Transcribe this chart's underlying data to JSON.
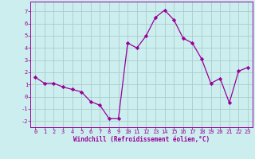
{
  "x": [
    0,
    1,
    2,
    3,
    4,
    5,
    6,
    7,
    8,
    9,
    10,
    11,
    12,
    13,
    14,
    15,
    16,
    17,
    18,
    19,
    20,
    21,
    22,
    23
  ],
  "y": [
    1.6,
    1.1,
    1.1,
    0.8,
    0.6,
    0.4,
    -0.4,
    -0.7,
    -1.8,
    -1.8,
    4.4,
    4.0,
    5.0,
    6.5,
    7.1,
    6.3,
    4.8,
    4.4,
    3.1,
    1.1,
    1.5,
    -0.5,
    2.1,
    2.4
  ],
  "line_color": "#990099",
  "marker": "D",
  "marker_size": 2.2,
  "bg_color": "#cceeee",
  "grid_color": "#aacccc",
  "xlabel": "Windchill (Refroidissement éolien,°C)",
  "xlabel_color": "#990099",
  "tick_color": "#990099",
  "spine_color": "#990099",
  "ylim": [
    -2.5,
    7.8
  ],
  "xlim": [
    -0.5,
    23.5
  ],
  "yticks": [
    -2,
    -1,
    0,
    1,
    2,
    3,
    4,
    5,
    6,
    7
  ],
  "xticks": [
    0,
    1,
    2,
    3,
    4,
    5,
    6,
    7,
    8,
    9,
    10,
    11,
    12,
    13,
    14,
    15,
    16,
    17,
    18,
    19,
    20,
    21,
    22,
    23
  ],
  "tick_fontsize": 5.0,
  "xlabel_fontsize": 5.5
}
